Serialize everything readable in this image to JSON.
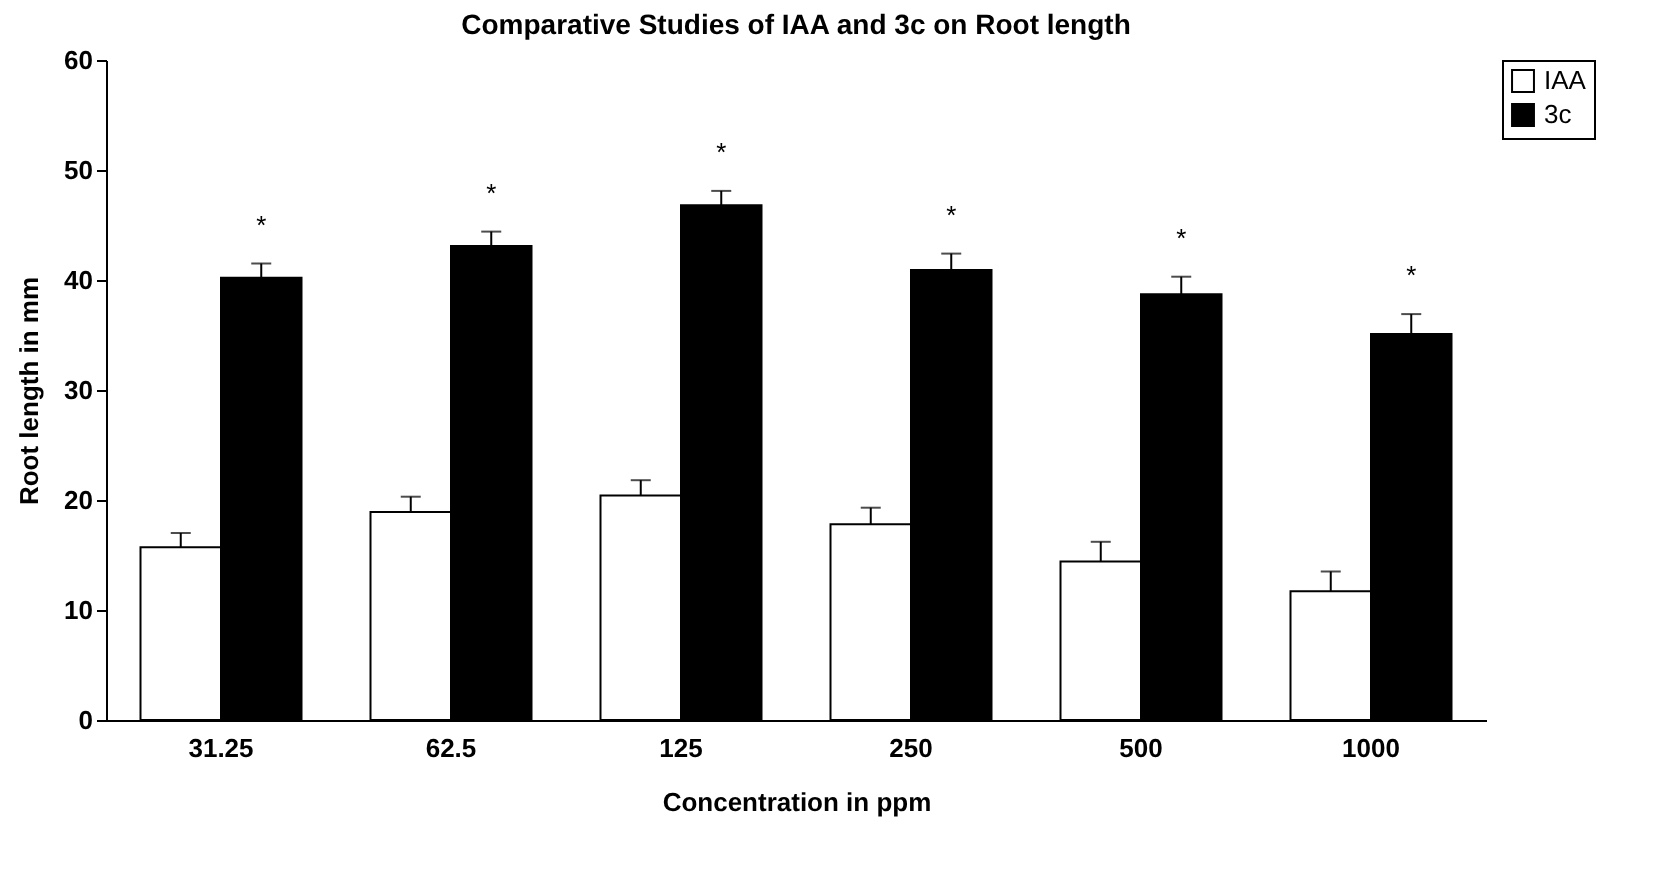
{
  "chart_data": {
    "type": "bar",
    "title": "Comparative Studies of IAA and 3c on Root length",
    "xlabel": "Concentration in ppm",
    "ylabel": "Root length in mm",
    "categories": [
      "31.25",
      "62.5",
      "125",
      "250",
      "500",
      "1000"
    ],
    "series": [
      {
        "name": "IAA",
        "color": "#ffffff",
        "values": [
          15.7,
          18.9,
          20.4,
          17.8,
          14.4,
          11.7
        ],
        "errors": [
          [
            15.7,
            17.0
          ],
          [
            18.9,
            20.3
          ],
          [
            20.4,
            21.8
          ],
          [
            17.8,
            19.3
          ],
          [
            14.4,
            16.2
          ],
          [
            11.7,
            13.5
          ]
        ]
      },
      {
        "name": "3c",
        "color": "#000000",
        "values": [
          40.2,
          43.1,
          46.8,
          40.9,
          38.7,
          35.1
        ],
        "errors": [
          [
            40.2,
            41.5
          ],
          [
            43.1,
            44.4
          ],
          [
            46.8,
            48.1
          ],
          [
            40.9,
            42.4
          ],
          [
            38.7,
            40.3
          ],
          [
            35.1,
            36.9
          ]
        ]
      }
    ],
    "annotations": [
      {
        "text": "*",
        "x": "31.25",
        "y": 40.2
      },
      {
        "text": "*",
        "x": "62.5",
        "y": 43.1
      },
      {
        "text": "*",
        "x": "125",
        "y": 46.8
      },
      {
        "text": "*",
        "x": "250",
        "y": 40.9
      },
      {
        "text": "*",
        "x": "500",
        "y": 38.7
      },
      {
        "text": "*",
        "x": "1000",
        "y": 35.1
      }
    ],
    "ylim": [
      0,
      60
    ],
    "yticks": [
      0,
      10,
      20,
      30,
      40,
      50,
      60
    ],
    "grid": false,
    "legend": "top right"
  }
}
